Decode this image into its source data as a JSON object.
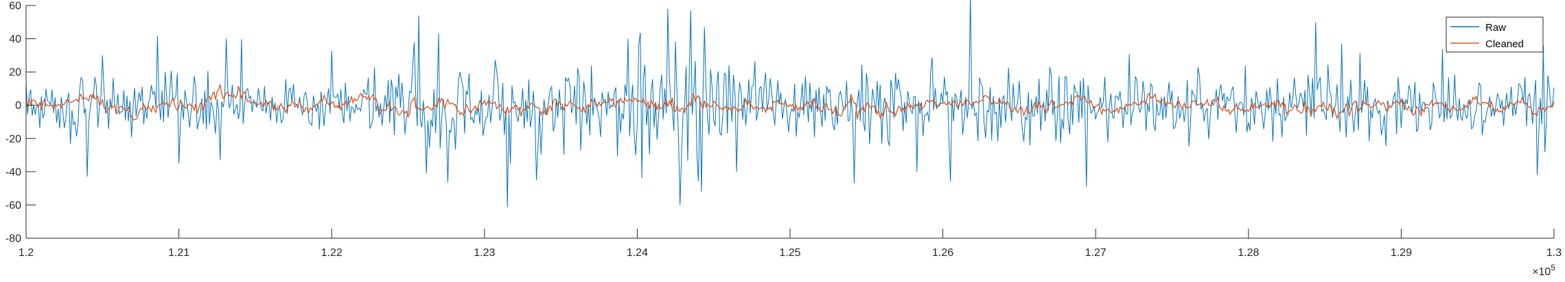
{
  "chart_data": {
    "type": "line",
    "title": "",
    "xlabel": "",
    "ylabel": "",
    "x_exponent_label": "×10",
    "x_exponent": "5",
    "xlim": [
      120000,
      130000
    ],
    "ylim": [
      -80,
      60
    ],
    "x_ticks": [
      120000,
      121000,
      122000,
      123000,
      124000,
      125000,
      126000,
      127000,
      128000,
      129000,
      130000
    ],
    "x_tick_labels": [
      "1.2",
      "1.21",
      "1.22",
      "1.23",
      "1.24",
      "1.25",
      "1.26",
      "1.27",
      "1.28",
      "1.29",
      "1.3"
    ],
    "y_ticks": [
      -80,
      -60,
      -40,
      -20,
      0,
      20,
      40,
      60
    ],
    "y_tick_labels": [
      "-80",
      "-60",
      "-40",
      "-20",
      "0",
      "20",
      "40",
      "60"
    ],
    "grid": false,
    "legend_position": "top-right",
    "sample_step": 10,
    "series": [
      {
        "name": "Raw",
        "color": "#0072BD",
        "envelope_x": [
          120000,
          120200,
          120400,
          120600,
          120800,
          121000,
          121200,
          121400,
          121600,
          121800,
          122000,
          122200,
          122400,
          122600,
          122800,
          123000,
          123200,
          123400,
          123600,
          123800,
          123950,
          124100,
          124200,
          124300,
          124400,
          124500,
          124700,
          124900,
          125100,
          125300,
          125500,
          125700,
          125900,
          126100,
          126300,
          126500,
          126700,
          126900,
          127100,
          127300,
          127500,
          127700,
          127900,
          128100,
          128300,
          128500,
          128700,
          128900,
          129100,
          129300,
          129500,
          129700,
          129900,
          130000
        ],
        "envelope_amplitude": [
          18,
          22,
          20,
          18,
          22,
          18,
          24,
          18,
          16,
          20,
          18,
          20,
          22,
          36,
          26,
          22,
          20,
          22,
          30,
          20,
          34,
          30,
          38,
          55,
          48,
          30,
          22,
          20,
          22,
          20,
          28,
          24,
          22,
          26,
          22,
          20,
          24,
          22,
          20,
          22,
          20,
          24,
          18,
          20,
          24,
          28,
          22,
          20,
          24,
          20,
          22,
          20,
          30,
          20
        ],
        "peaks": [
          {
            "x": 120400,
            "y": -43
          },
          {
            "x": 120500,
            "y": 30
          },
          {
            "x": 121000,
            "y": -35
          },
          {
            "x": 121270,
            "y": -33
          },
          {
            "x": 121310,
            "y": 40
          },
          {
            "x": 122570,
            "y": 54
          },
          {
            "x": 122620,
            "y": -41
          },
          {
            "x": 122700,
            "y": 43
          },
          {
            "x": 123170,
            "y": -35
          },
          {
            "x": 123340,
            "y": -45
          },
          {
            "x": 123940,
            "y": 40
          },
          {
            "x": 123990,
            "y": -30
          },
          {
            "x": 124200,
            "y": 58
          },
          {
            "x": 124280,
            "y": -60
          },
          {
            "x": 124350,
            "y": 57
          },
          {
            "x": 124420,
            "y": -52
          },
          {
            "x": 124440,
            "y": 47
          },
          {
            "x": 124650,
            "y": -40
          },
          {
            "x": 125420,
            "y": -47
          },
          {
            "x": 125830,
            "y": -40
          },
          {
            "x": 126050,
            "y": -46
          },
          {
            "x": 126940,
            "y": -49
          },
          {
            "x": 128610,
            "y": 37
          },
          {
            "x": 129890,
            "y": -42
          },
          {
            "x": 129930,
            "y": 36
          }
        ]
      },
      {
        "name": "Cleaned",
        "color": "#D95319",
        "envelope_x": [
          120000,
          120500,
          121000,
          121300,
          121600,
          122000,
          122500,
          123000,
          123500,
          124000,
          124300,
          124600,
          125000,
          125500,
          126000,
          126500,
          127000,
          127500,
          128000,
          128500,
          129000,
          129500,
          130000
        ],
        "envelope_amplitude": [
          4,
          4,
          4,
          6,
          3,
          4,
          5,
          4,
          4,
          4,
          6,
          4,
          4,
          6,
          4,
          4,
          4,
          4,
          4,
          5,
          4,
          4,
          4
        ]
      }
    ]
  }
}
